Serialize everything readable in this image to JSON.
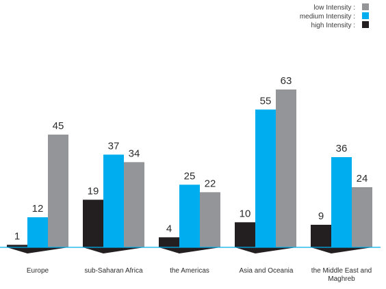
{
  "chart_data": {
    "type": "bar",
    "categories": [
      "Europe",
      "sub-Saharan Africa",
      "the Americas",
      "Asia and Oceania",
      "the Middle East and Maghreb"
    ],
    "series": [
      {
        "name": "high Intensity :",
        "values": [
          1,
          19,
          4,
          10,
          9
        ],
        "color": "#231f20"
      },
      {
        "name": "medium Intensity :",
        "values": [
          12,
          37,
          25,
          55,
          36
        ],
        "color": "#00aeef"
      },
      {
        "name": "low Intensity :",
        "values": [
          45,
          34,
          22,
          63,
          24
        ],
        "color": "#939598"
      }
    ],
    "legend_order": [
      "low Intensity :",
      "medium Intensity :",
      "high Intensity :"
    ],
    "legend_position": "top-right",
    "ylim": [
      0,
      63
    ],
    "grid": false,
    "baseline_color": "#00aeef",
    "shadow_color": "#231f20"
  }
}
